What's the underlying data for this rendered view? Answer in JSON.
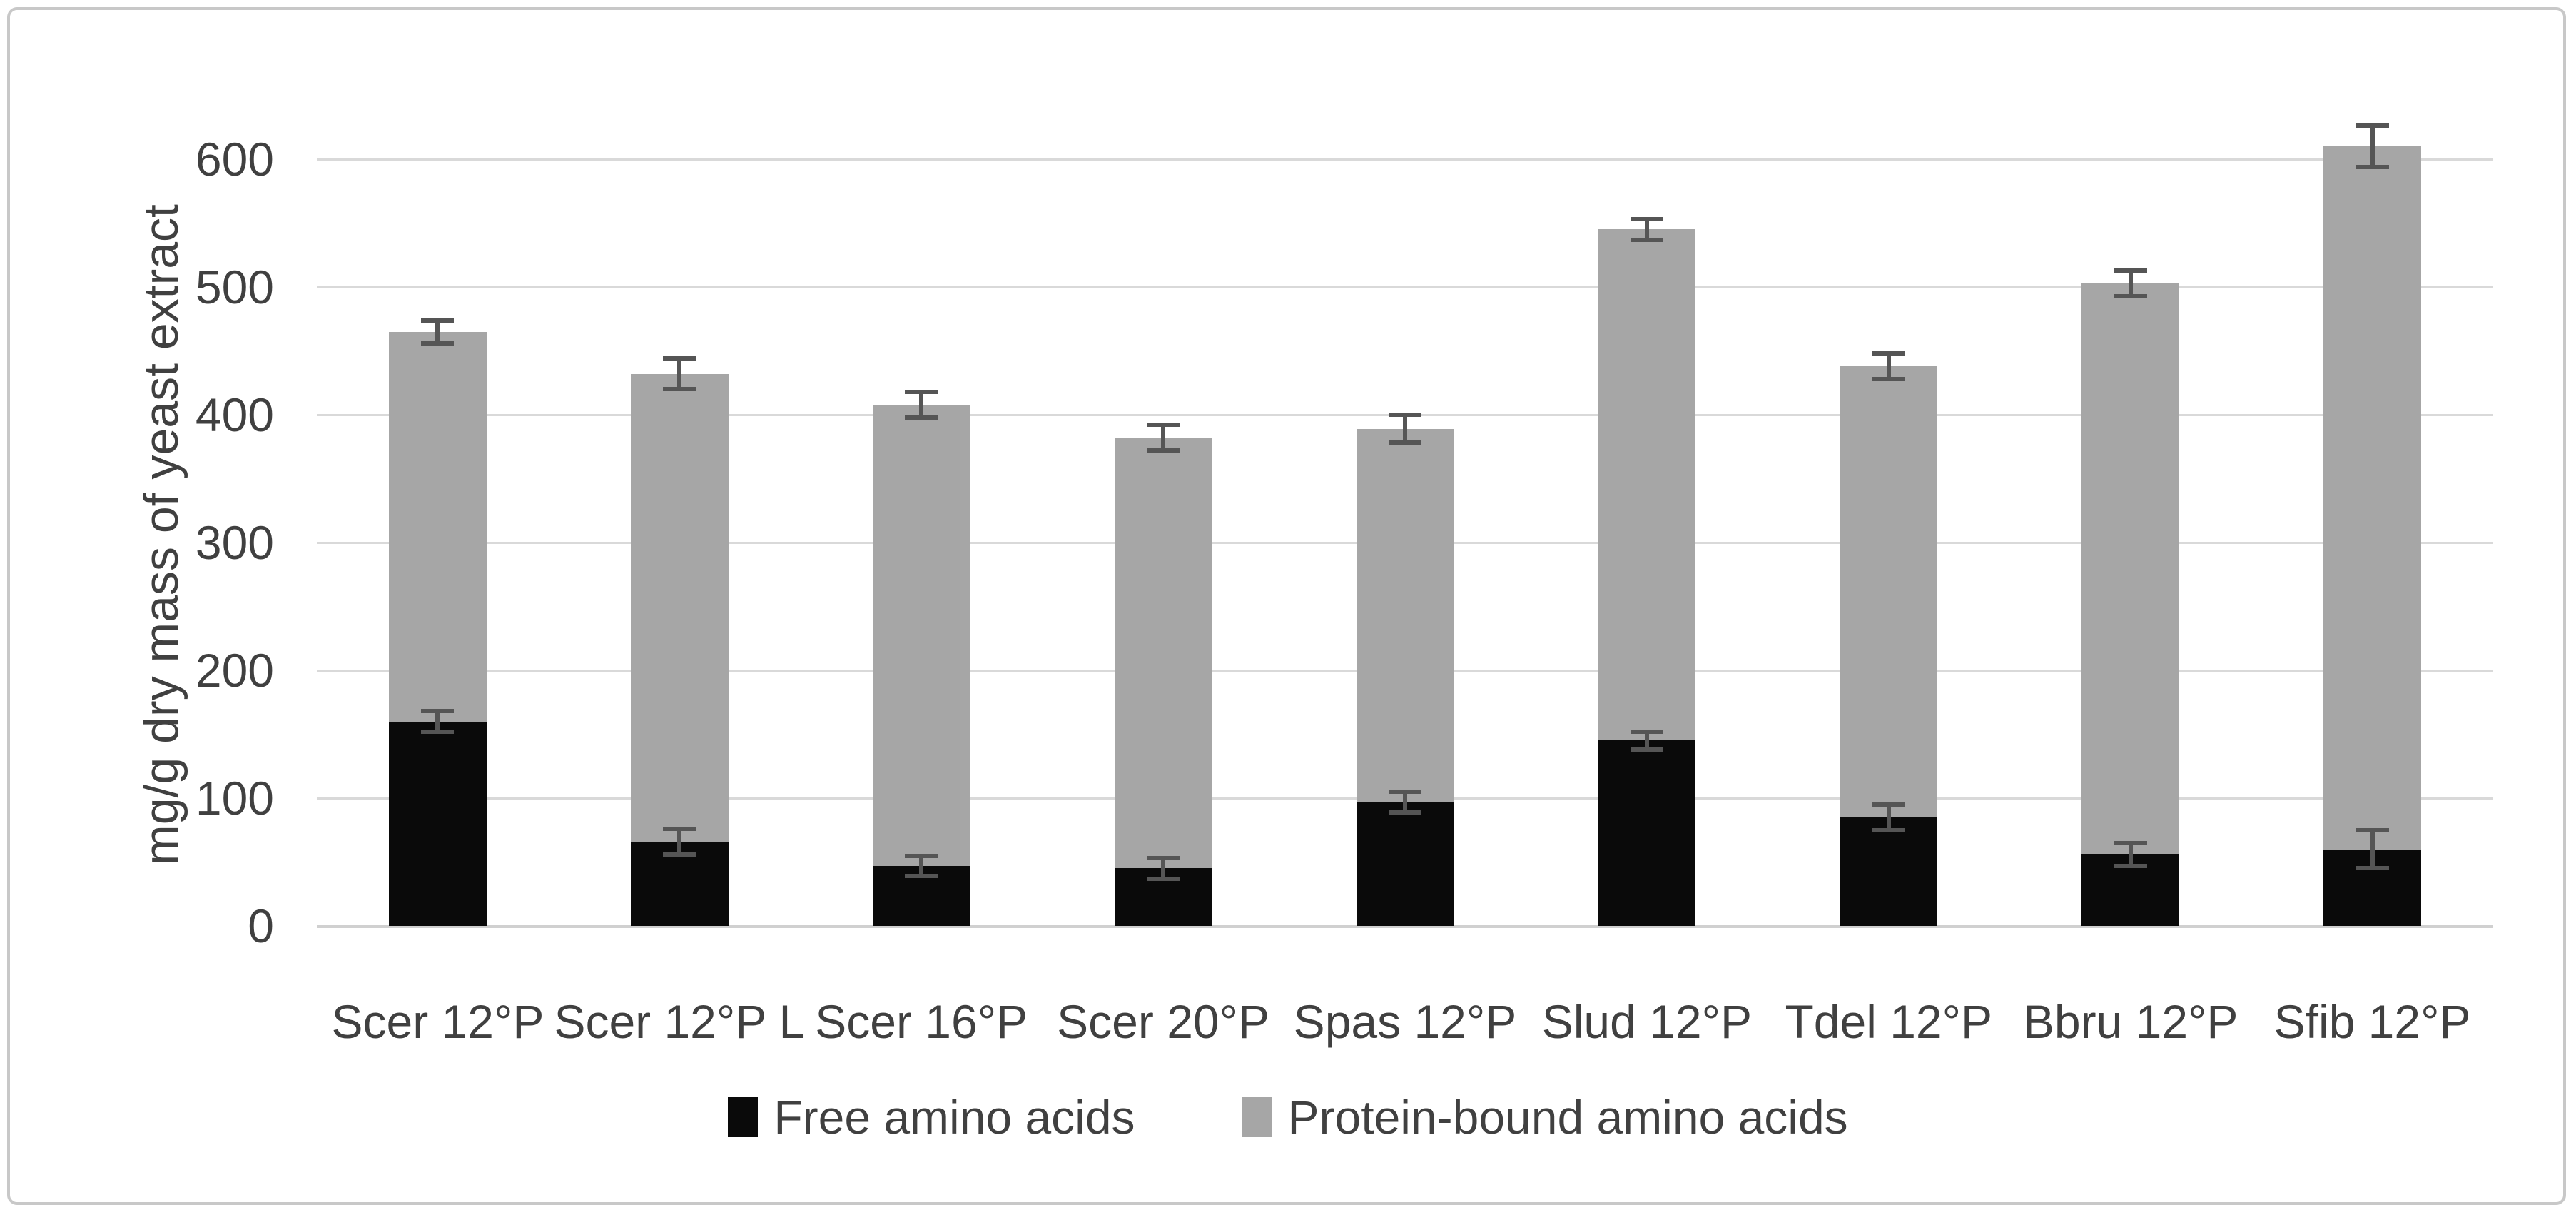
{
  "figure": {
    "background": "#ffffff",
    "border_color": "#c8c8c8"
  },
  "colors": {
    "free_series": "#0a0a0a",
    "bound_series": "#a6a6a6",
    "gridline": "#d9d9d9",
    "axis_line": "#d0d0d0",
    "error_bar": "#555555",
    "text": "#404040"
  },
  "chart_data": {
    "type": "bar",
    "stacked": true,
    "title": "",
    "xlabel": "",
    "ylabel": "mg/g dry mass of yeast extract",
    "ylim": [
      0,
      600
    ],
    "yticks": [
      0,
      100,
      200,
      300,
      400,
      500,
      600
    ],
    "grid": true,
    "legend_position": "bottom",
    "categories": [
      "Scer 12°P",
      "Scer 12°P L",
      "Scer 16°P",
      "Scer 20°P",
      "Spas 12°P",
      "Slud 12°P",
      "Tdel 12°P",
      "Bbru 12°P",
      "Sfib 12°P"
    ],
    "series": [
      {
        "name": "Free amino acids",
        "color": "#0a0a0a",
        "values": [
          160,
          66,
          47,
          45,
          97,
          145,
          85,
          56,
          60
        ],
        "errors": [
          8,
          10,
          8,
          8,
          8,
          7,
          10,
          9,
          15
        ]
      },
      {
        "name": "Protein-bound amino acids",
        "color": "#a6a6a6",
        "values": [
          305,
          366,
          361,
          337,
          292,
          400,
          353,
          447,
          550
        ]
      }
    ],
    "totals": [
      465,
      432,
      408,
      382,
      389,
      545,
      438,
      503,
      610
    ],
    "total_errors": [
      9,
      12,
      10,
      10,
      11,
      8,
      10,
      10,
      16
    ]
  }
}
